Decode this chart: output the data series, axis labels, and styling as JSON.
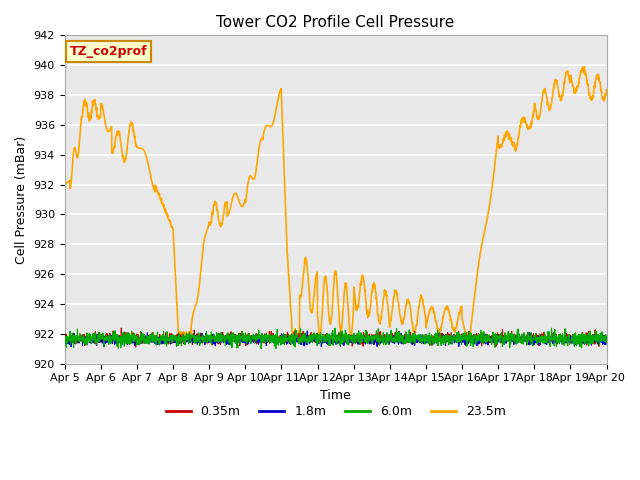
{
  "title": "Tower CO2 Profile Cell Pressure",
  "xlabel": "Time",
  "ylabel": "Cell Pressure (mBar)",
  "ylim": [
    920,
    942
  ],
  "xlim": [
    0,
    15
  ],
  "x_tick_labels": [
    "Apr 5",
    "Apr 6",
    "Apr 7",
    "Apr 8",
    "Apr 9",
    "Apr 10",
    "Apr 11",
    "Apr 12",
    "Apr 13",
    "Apr 14",
    "Apr 15",
    "Apr 16",
    "Apr 17",
    "Apr 18",
    "Apr 19",
    "Apr 20"
  ],
  "plot_bg_color": "#e8e8e8",
  "fig_bg_color": "#ffffff",
  "grid_color": "#ffffff",
  "annotation_text": "TZ_co2prof",
  "annotation_color": "#cc0000",
  "annotation_bg": "#ffffcc",
  "annotation_border": "#cc8800",
  "series": [
    {
      "label": "0.35m",
      "color": "#cc0000",
      "linewidth": 0.8
    },
    {
      "label": "1.8m",
      "color": "#0000cc",
      "linewidth": 0.8
    },
    {
      "label": "6.0m",
      "color": "#00aa00",
      "linewidth": 0.8
    },
    {
      "label": "23.5m",
      "color": "#ffa500",
      "linewidth": 1.2
    }
  ],
  "title_fontsize": 11,
  "axis_label_fontsize": 9,
  "tick_fontsize": 8,
  "legend_fontsize": 9
}
